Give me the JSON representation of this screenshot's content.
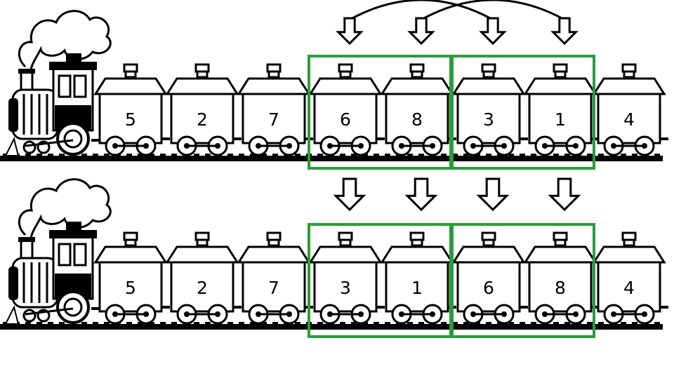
{
  "colors": {
    "highlight": "#2a9d3a",
    "line": "#000000",
    "background": "#ffffff"
  },
  "trains": [
    {
      "id": "before",
      "cars": [
        "5",
        "2",
        "7",
        "6",
        "8",
        "3",
        "1",
        "4"
      ],
      "highlight_groups": [
        [
          3,
          4
        ],
        [
          5,
          6
        ]
      ]
    },
    {
      "id": "after",
      "cars": [
        "5",
        "2",
        "7",
        "3",
        "1",
        "6",
        "8",
        "4"
      ],
      "highlight_groups": [
        [
          3,
          4
        ],
        [
          5,
          6
        ]
      ]
    }
  ],
  "swap_arrows": [
    {
      "from_car": 3,
      "to_car": 5
    },
    {
      "from_car": 4,
      "to_car": 6
    }
  ],
  "down_arrows_between_rows": [
    3,
    4,
    5,
    6
  ]
}
